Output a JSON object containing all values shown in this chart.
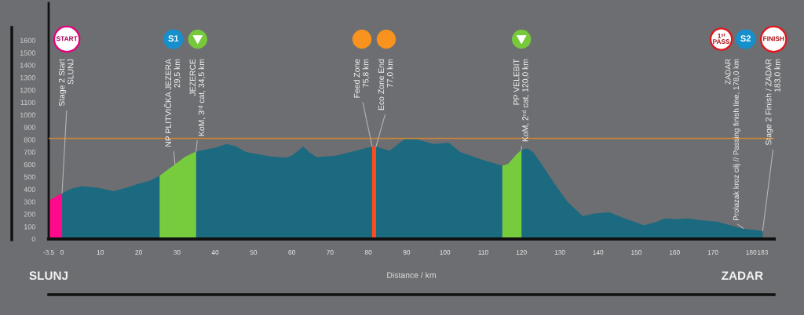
{
  "chart_data": {
    "type": "area",
    "xlabel": "Distance / km",
    "xlim": [
      -3.5,
      186
    ],
    "xticks": [
      -3.5,
      0,
      10,
      20,
      30,
      40,
      50,
      60,
      70,
      80,
      90,
      100,
      110,
      120,
      130,
      140,
      150,
      160,
      170,
      180,
      183
    ],
    "ylim": [
      0,
      1900
    ],
    "yticks": [
      0,
      100,
      200,
      300,
      400,
      500,
      600,
      700,
      800,
      900,
      1000,
      1100,
      1200,
      1300,
      1400,
      1500,
      1600
    ],
    "series": [
      {
        "color": "#1b6a80",
        "x": [
          0,
          2.5,
          5,
          9,
          13.5,
          17,
          20,
          23,
          25.5,
          30,
          35,
          40,
          43,
          45.5,
          48,
          54.5,
          58.5,
          60,
          63,
          64.5,
          66.5,
          71.5,
          76,
          81,
          81.5,
          82,
          85.5,
          89.5,
          93,
          97,
          101,
          104,
          109.5,
          115,
          117.5,
          120,
          121.5,
          123,
          125,
          127,
          129,
          132,
          136,
          139,
          143,
          147,
          152,
          155,
          157.5,
          160.5,
          163.5,
          167,
          171,
          174,
          177.5,
          183
        ],
        "values": [
          370,
          405,
          425,
          415,
          385,
          415,
          445,
          470,
          510,
          null,
          705,
          735,
          765,
          745,
          700,
          665,
          655,
          670,
          745,
          700,
          660,
          670,
          705,
          745,
          null,
          745,
          710,
          805,
          800,
          765,
          775,
          700,
          640,
          590,
          null,
          720,
          730,
          700,
          615,
          520,
          430,
          300,
          185,
          205,
          215,
          165,
          110,
          135,
          165,
          160,
          165,
          150,
          140,
          115,
          85,
          65
        ]
      },
      {
        "color": "#ff0a8c",
        "x": [
          -3.5,
          0
        ],
        "values": [
          310,
          370
        ]
      },
      {
        "color": "#76cc3d",
        "x": [
          25.5,
          29,
          32,
          35
        ],
        "values": [
          510,
          590,
          660,
          705
        ]
      },
      {
        "color": "#ff4b1e",
        "x": [
          81,
          82
        ],
        "values": [
          745,
          745
        ]
      },
      {
        "color": "#76cc3d",
        "x": [
          115,
          116.5,
          118.5,
          120
        ],
        "values": [
          590,
          605,
          675,
          720
        ]
      }
    ],
    "ref_lines": [
      {
        "axis": "y",
        "value": 810,
        "color": "#c8843c"
      }
    ],
    "annotations": [
      "START",
      {
        "text": "Stage 2 Start\nSLUNJ",
        "x": 0,
        "y": 370
      },
      "S1",
      {
        "text": "NP PLITVIČKA JEZERA\n29,5 km",
        "x": 29.5,
        "y": 600
      },
      {
        "text": "JEZERCE\nKoM, 3ʳᵈ cat, 34,5 km",
        "x": 35,
        "y": 705
      },
      {
        "text": "Feed Zone\n75,8 km",
        "x": 81,
        "y": 745
      },
      {
        "text": "Eco Zone End\n77,0 km",
        "x": 82,
        "y": 745
      },
      {
        "text": "PP VELEBIT\nKoM, 2ⁿᵈ cat, 120,0 km",
        "x": 120,
        "y": 720
      },
      "1ˢᵗ\nPASS",
      "S2",
      {
        "text": "ZADAR\nProlazak kroz cilj // Passing finish line, 178,0 km",
        "x": 178,
        "y": 85
      },
      "FINISH",
      {
        "text": "Stage 2 Finish / ZADAR\n183,0 km",
        "x": 183,
        "y": 65
      },
      "SLUNJ",
      "ZADAR"
    ]
  }
}
